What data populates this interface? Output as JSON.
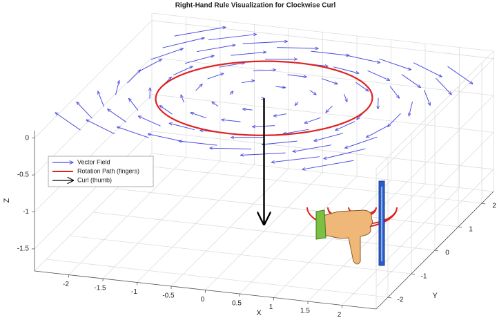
{
  "chart_data": {
    "type": "quiver3",
    "title": "Right-Hand Rule Visualization for Clockwise Curl",
    "xlabel": "X",
    "ylabel": "Y",
    "zlabel": "Z",
    "xlim": [
      -2.5,
      2.5
    ],
    "ylim": [
      -2.5,
      2.5
    ],
    "zlim": [
      -1.8,
      0.1
    ],
    "xticks": [
      -2,
      -1.5,
      -1,
      -0.5,
      0,
      0.5,
      1,
      1.5,
      2
    ],
    "yticks": [
      -2,
      -1,
      0,
      1,
      2
    ],
    "zticks": [
      -1.5,
      -1,
      -0.5,
      0
    ],
    "grid": true,
    "legend": "west",
    "series": [
      {
        "name": "Vector Field",
        "color": "#4a4ae0",
        "z": 0,
        "grid_x": [
          -2,
          -1.5,
          -1,
          -0.5,
          0,
          0.5,
          1,
          1.5,
          2
        ],
        "grid_y": [
          -2,
          -1.5,
          -1,
          -0.5,
          0,
          0.5,
          1,
          1.5,
          2
        ],
        "u": [
          [
            -2,
            -2,
            -2,
            -2,
            -2,
            -2,
            -2,
            -2,
            -2
          ],
          [
            -1.5,
            -1.5,
            -1.5,
            -1.5,
            -1.5,
            -1.5,
            -1.5,
            -1.5,
            -1.5
          ],
          [
            -1,
            -1,
            -1,
            -1,
            -1,
            -1,
            -1,
            -1,
            -1
          ],
          [
            -0.5,
            -0.5,
            -0.5,
            -0.5,
            -0.5,
            -0.5,
            -0.5,
            -0.5,
            -0.5
          ],
          [
            0,
            0,
            0,
            0,
            0,
            0,
            0,
            0,
            0
          ],
          [
            0.5,
            0.5,
            0.5,
            0.5,
            0.5,
            0.5,
            0.5,
            0.5,
            0.5
          ],
          [
            1,
            1,
            1,
            1,
            1,
            1,
            1,
            1,
            1
          ],
          [
            1.5,
            1.5,
            1.5,
            1.5,
            1.5,
            1.5,
            1.5,
            1.5,
            1.5
          ],
          [
            2,
            2,
            2,
            2,
            2,
            2,
            2,
            2,
            2
          ]
        ],
        "v": [
          [
            2,
            1.5,
            1,
            0.5,
            0,
            -0.5,
            -1,
            -1.5,
            -2
          ],
          [
            2,
            1.5,
            1,
            0.5,
            0,
            -0.5,
            -1,
            -1.5,
            -2
          ],
          [
            2,
            1.5,
            1,
            0.5,
            0,
            -0.5,
            -1,
            -1.5,
            -2
          ],
          [
            2,
            1.5,
            1,
            0.5,
            0,
            -0.5,
            -1,
            -1.5,
            -2
          ],
          [
            2,
            1.5,
            1,
            0.5,
            0,
            -0.5,
            -1,
            -1.5,
            -2
          ],
          [
            2,
            1.5,
            1,
            0.5,
            0,
            -0.5,
            -1,
            -1.5,
            -2
          ],
          [
            2,
            1.5,
            1,
            0.5,
            0,
            -0.5,
            -1,
            -1.5,
            -2
          ],
          [
            2,
            1.5,
            1,
            0.5,
            0,
            -0.5,
            -1,
            -1.5,
            -2
          ],
          [
            2,
            1.5,
            1,
            0.5,
            0,
            -0.5,
            -1,
            -1.5,
            -2
          ]
        ]
      },
      {
        "name": "Rotation Path (fingers)",
        "color": "#e02020",
        "radius": 1.5,
        "z": 0
      },
      {
        "name": "Curl (thumb)",
        "color": "#000000",
        "z": [
          0,
          -1.7
        ]
      }
    ]
  }
}
